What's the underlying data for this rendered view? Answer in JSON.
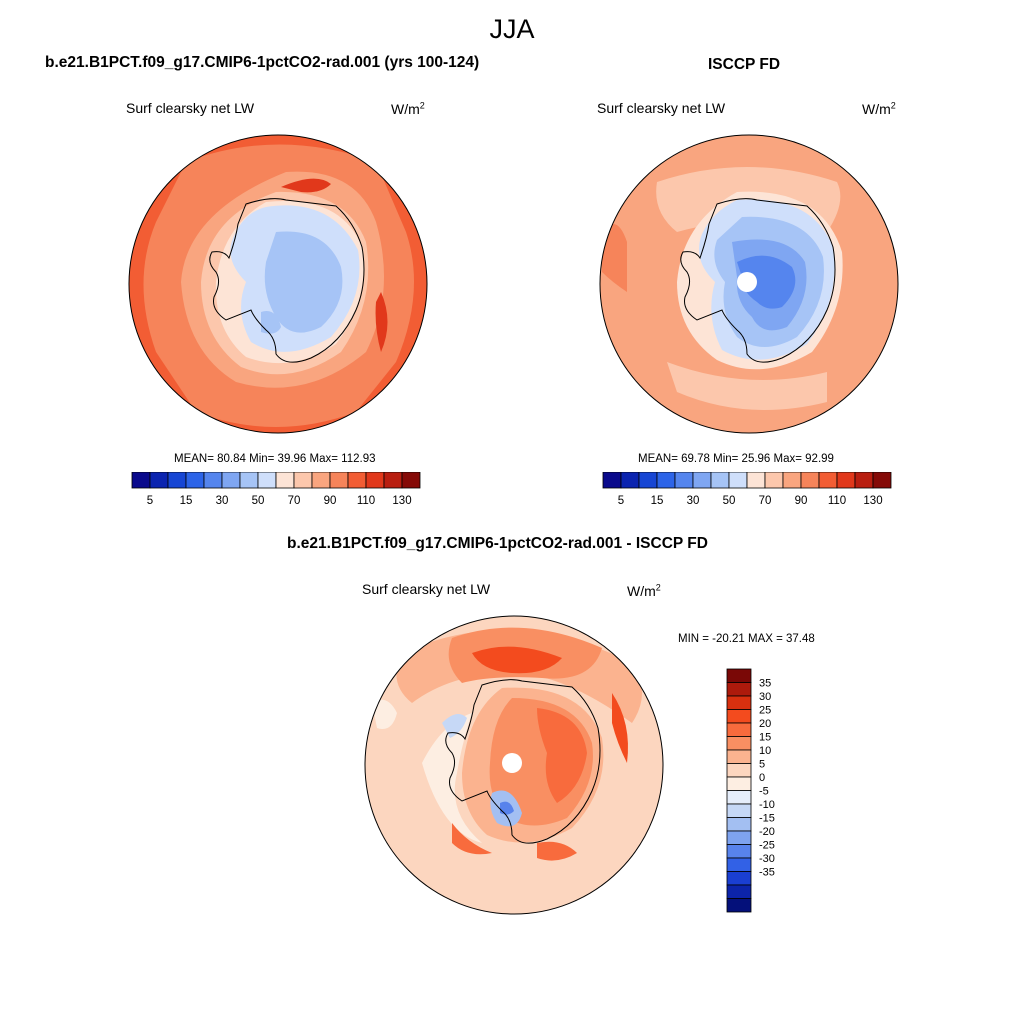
{
  "season": "JJA",
  "panels": {
    "model": {
      "title": "b.e21.B1PCT.f09_g17.CMIP6-1pctCO2-rad.001 (yrs 100-124)",
      "variable": "Surf clearsky net LW",
      "units_base": "W/m",
      "units_exp": "2",
      "stats": "MEAN=  80.84  Min=  39.96  Max= 112.93",
      "mean": 80.84,
      "min": 39.96,
      "max": 112.93
    },
    "obs": {
      "title": "ISCCP FD",
      "variable": "Surf clearsky net LW",
      "units_base": "W/m",
      "units_exp": "2",
      "stats": "MEAN=  69.78  Min=  25.96  Max=  92.99",
      "mean": 69.78,
      "min": 25.96,
      "max": 92.99
    },
    "diff": {
      "title": "b.e21.B1PCT.f09_g17.CMIP6-1pctCO2-rad.001 - ISCCP FD",
      "variable": "Surf clearsky net LW",
      "units_base": "W/m",
      "units_exp": "2",
      "stats": "MIN = -20.21 MAX =  37.48",
      "min": -20.21,
      "max": 37.48
    }
  },
  "colorbar_main": {
    "colors": [
      "#0a0a8c",
      "#0b24b0",
      "#1746d4",
      "#2d64e8",
      "#5585ee",
      "#7fa6f2",
      "#a6c4f6",
      "#cfdffb",
      "#fde4d6",
      "#fcc7ac",
      "#f9a57f",
      "#f6845a",
      "#f25d34",
      "#e1381b",
      "#b91e10",
      "#850a07"
    ],
    "ticks": [
      "5",
      "15",
      "30",
      "50",
      "70",
      "90",
      "110",
      "130"
    ]
  },
  "colorbar_diff": {
    "colors": [
      "#7a0806",
      "#ad1a0c",
      "#d8300f",
      "#f34b1e",
      "#f86b3d",
      "#f98f62",
      "#fbb38f",
      "#fcd6bf",
      "#fdeee2",
      "#e6eefb",
      "#c6d8f6",
      "#a3bff2",
      "#7ea3ef",
      "#5883ec",
      "#3261e6",
      "#1a3fd2",
      "#0c24aa",
      "#04107a"
    ],
    "labels": [
      "35",
      "30",
      "25",
      "20",
      "15",
      "10",
      "5",
      "0",
      "-5",
      "-10",
      "-15",
      "-20",
      "-25",
      "-30",
      "-35"
    ]
  }
}
